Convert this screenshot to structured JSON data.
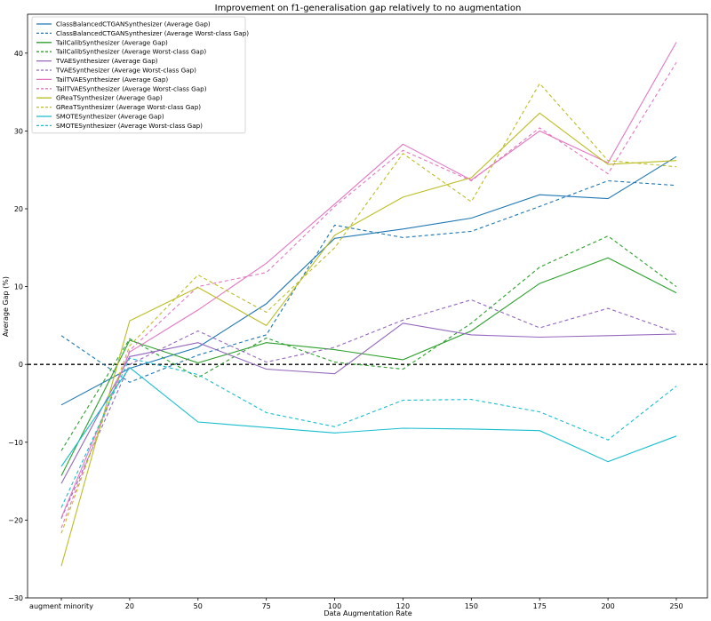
{
  "chart_data": {
    "type": "line",
    "title": "Improvement on f1-generalisation gap relatively to no augmentation",
    "xlabel": "Data Augmentation Rate",
    "ylabel": "Average Gap (%)",
    "categories": [
      "augment minority",
      "20",
      "50",
      "75",
      "100",
      "120",
      "150",
      "175",
      "200",
      "250"
    ],
    "ylim": [
      -30,
      45
    ],
    "yticks": [
      -30,
      -20,
      -10,
      0,
      10,
      20,
      30,
      40
    ],
    "grid": false,
    "legend_position": "top-left",
    "reference_line": {
      "y": 0,
      "style": "dashed",
      "color": "#000000"
    },
    "series": [
      {
        "name": "ClassBalancedCTGANSynthesizer (Average Gap)",
        "color": "#1f77b4",
        "dash": false,
        "values": [
          -5.2,
          -0.5,
          2.2,
          7.8,
          16.2,
          17.4,
          18.8,
          21.8,
          21.3,
          26.7
        ]
      },
      {
        "name": "ClassBalancedCTGANSynthesizer (Average Worst-class Gap)",
        "color": "#1f77b4",
        "dash": true,
        "values": [
          3.7,
          -2.3,
          1.2,
          3.8,
          17.9,
          16.3,
          17.1,
          20.3,
          23.6,
          23.0
        ]
      },
      {
        "name": "TailCalibSynthesizer (Average Gap)",
        "color": "#2ca02c",
        "dash": false,
        "values": [
          -14.3,
          3.1,
          0.2,
          2.8,
          1.9,
          0.6,
          4.3,
          10.4,
          13.7,
          9.2
        ]
      },
      {
        "name": "TailCalibSynthesizer (Average Worst-class Gap)",
        "color": "#2ca02c",
        "dash": true,
        "values": [
          -11.1,
          3.3,
          -1.7,
          3.4,
          0.3,
          -0.6,
          5.3,
          12.5,
          16.5,
          10.0
        ]
      },
      {
        "name": "TVAESynthesizer (Average Gap)",
        "color": "#9467bd",
        "dash": false,
        "values": [
          -15.3,
          1.0,
          2.8,
          -0.6,
          -1.2,
          5.3,
          3.8,
          3.5,
          3.7,
          3.9
        ]
      },
      {
        "name": "TVAESynthesizer (Average Worst-class Gap)",
        "color": "#9467bd",
        "dash": true,
        "values": [
          -19.8,
          0.0,
          4.3,
          0.3,
          2.2,
          5.7,
          8.3,
          4.7,
          7.2,
          4.1
        ]
      },
      {
        "name": "TailTVAESynthesizer (Average Gap)",
        "color": "#e377c2",
        "dash": false,
        "values": [
          -19.7,
          1.6,
          7.0,
          13.0,
          20.6,
          28.3,
          23.7,
          30.0,
          25.9,
          41.4
        ]
      },
      {
        "name": "TailTVAESynthesizer (Average Worst-class Gap)",
        "color": "#e377c2",
        "dash": true,
        "values": [
          -21.0,
          1.8,
          10.0,
          11.8,
          20.3,
          27.5,
          23.6,
          30.4,
          24.5,
          38.8
        ]
      },
      {
        "name": "GReaTSynthesizer (Average Gap)",
        "color": "#bcbd22",
        "dash": false,
        "values": [
          -25.9,
          5.6,
          9.9,
          5.0,
          16.6,
          21.5,
          24.0,
          32.3,
          25.7,
          26.2
        ]
      },
      {
        "name": "GReaTSynthesizer (Average Worst-class Gap)",
        "color": "#bcbd22",
        "dash": true,
        "values": [
          -21.7,
          2.4,
          11.5,
          6.7,
          15.0,
          27.1,
          20.9,
          36.1,
          26.2,
          25.4
        ]
      },
      {
        "name": "SMOTESynthesizer (Average Gap)",
        "color": "#17becf",
        "dash": false,
        "values": [
          -13.1,
          -0.4,
          -7.4,
          -8.1,
          -8.8,
          -8.2,
          -8.3,
          -8.5,
          -12.5,
          -9.2
        ]
      },
      {
        "name": "SMOTESynthesizer (Average Worst-class Gap)",
        "color": "#17becf",
        "dash": true,
        "values": [
          -18.4,
          0.8,
          -1.3,
          -6.2,
          -8.0,
          -4.6,
          -4.5,
          -6.1,
          -9.7,
          -2.8
        ]
      }
    ]
  }
}
